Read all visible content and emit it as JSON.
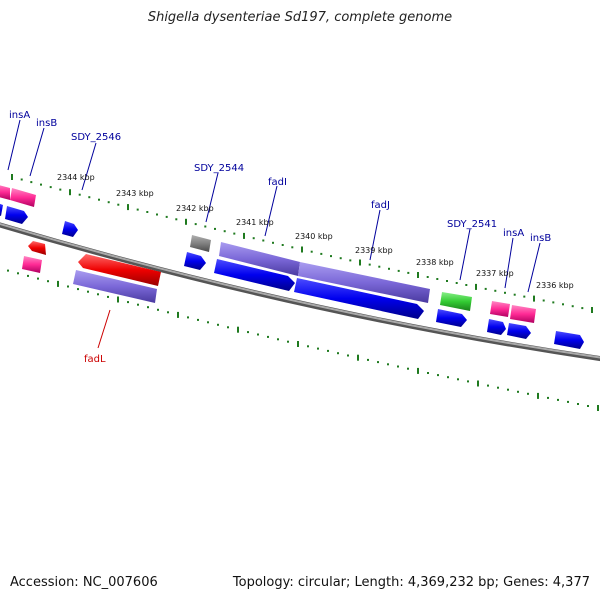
{
  "title": "Shigella dysenteriae Sd197, complete genome",
  "footer": {
    "accession": "Accession: NC_007606",
    "summary": "Topology: circular; Length: 4,369,232 bp; Genes: 4,377"
  },
  "colors": {
    "backbone": "#808080",
    "tick": "#1f7a1f",
    "forward_cds": "#0000ff",
    "reverse_cds": "#7b68d8",
    "insertion_element": "#ff3399",
    "highlighted_gene": "#ff0000",
    "rna": "#33cc33",
    "pseudo": "#808080",
    "label_default": "#00009c",
    "label_highlight": "#cc0000"
  },
  "tick_labels": [
    "2344 kbp",
    "2343 kbp",
    "2342 kbp",
    "2341 kbp",
    "2340 kbp",
    "2339 kbp",
    "2338 kbp",
    "2337 kbp",
    "2336 kbp"
  ],
  "gene_labels": [
    {
      "name": "insA",
      "highlight": false
    },
    {
      "name": "insB",
      "highlight": false
    },
    {
      "name": "SDY_2546",
      "highlight": false
    },
    {
      "name": "SDY_2544",
      "highlight": false
    },
    {
      "name": "fadI",
      "highlight": false
    },
    {
      "name": "fadJ",
      "highlight": false
    },
    {
      "name": "SDY_2541",
      "highlight": false
    },
    {
      "name": "insA",
      "highlight": false
    },
    {
      "name": "insB",
      "highlight": false
    },
    {
      "name": "fadL",
      "highlight": true
    }
  ]
}
